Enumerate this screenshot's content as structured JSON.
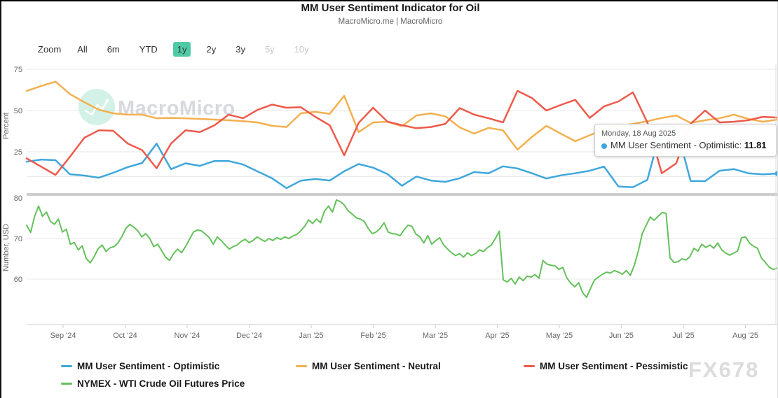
{
  "header": {
    "title": "MM User Sentiment Indicator for Oil",
    "subtitle": "MacroMicro.me | MacroMicro"
  },
  "range_selector": {
    "zoom_label": "Zoom",
    "buttons": [
      {
        "label": "All",
        "state": "normal"
      },
      {
        "label": "6m",
        "state": "normal"
      },
      {
        "label": "YTD",
        "state": "normal"
      },
      {
        "label": "1y",
        "state": "active"
      },
      {
        "label": "2y",
        "state": "normal"
      },
      {
        "label": "3y",
        "state": "normal"
      },
      {
        "label": "5y",
        "state": "disabled"
      },
      {
        "label": "10y",
        "state": "disabled"
      }
    ]
  },
  "tooltip": {
    "date": "Monday, 18 Aug 2025",
    "series_name": "MM User Sentiment - Optimistic",
    "separator": ": ",
    "value": "11.81",
    "marker_color": "#3FA7DC"
  },
  "watermarks": {
    "brand_text": "MacroMicro",
    "fx_text": "FX678"
  },
  "colors": {
    "optimistic": "#3FA7DC",
    "neutral": "#F4B04F",
    "pessimistic": "#EE5A4B",
    "wti": "#64C15B",
    "active_button_bg": "#50C9A5",
    "gridline": "#E7E7E7",
    "separator_band": "#CDCDCD",
    "axis_text": "#666666",
    "watermark_circle": "#AEE6D2",
    "watermark_text": "#CDD2D6"
  },
  "x_axis": {
    "months": [
      "Sep '24",
      "Oct '24",
      "Nov '24",
      "Dec '24",
      "Jan '25",
      "Feb '25",
      "Mar '25",
      "Apr '25",
      "May '25",
      "Jun '25",
      "Jul '25",
      "Aug '25"
    ]
  },
  "chart_data": [
    {
      "type": "line",
      "panel": "top",
      "ylabel": "Percent",
      "yticks": [
        25,
        50,
        75
      ],
      "gridlines": [
        10,
        25,
        50,
        75
      ],
      "ylim": [
        0,
        78
      ],
      "legend_position": "bottom",
      "series": [
        {
          "name": "MM User Sentiment - Optimistic",
          "color_key": "optimistic",
          "values": [
            19,
            20.3,
            19.9,
            11.4,
            10.6,
            9.3,
            12.3,
            15.7,
            18.2,
            30,
            14.5,
            18,
            16.5,
            19.4,
            19.4,
            17.3,
            13.1,
            9,
            3,
            7.5,
            8.5,
            7.6,
            13.2,
            17.6,
            15.4,
            11.5,
            4.4,
            10,
            7.6,
            6.8,
            9,
            12.7,
            12,
            16.2,
            14.9,
            12,
            8.8,
            10.7,
            12,
            13.5,
            16,
            4,
            3.5,
            8,
            40.5,
            40,
            7.3,
            7.2,
            13.5,
            14.5,
            12,
            11.3,
            11.81
          ]
        },
        {
          "name": "MM User Sentiment - Neutral",
          "color_key": "neutral",
          "values": [
            61.9,
            64.8,
            67.5,
            60,
            55,
            50.5,
            48.3,
            47.5,
            47.5,
            45.3,
            45.5,
            45.3,
            44.9,
            44.5,
            44.1,
            43.5,
            42.8,
            40.7,
            40,
            48.3,
            49.2,
            48,
            58.9,
            36.9,
            42.8,
            43.2,
            40.5,
            47,
            48.3,
            46.5,
            39.8,
            36,
            39.5,
            38,
            26.3,
            34,
            40.7,
            36,
            31.4,
            35,
            38.5,
            40.7,
            41.9,
            43.5,
            45.5,
            47,
            42.5,
            44.1,
            45.3,
            47.5,
            44.9,
            43.2,
            44.5
          ]
        },
        {
          "name": "MM User Sentiment - Pessimistic",
          "color_key": "pessimistic",
          "values": [
            21,
            16,
            11,
            22,
            33.5,
            38,
            37.7,
            30,
            26,
            15,
            30,
            38,
            37,
            41,
            47.5,
            45.3,
            50.4,
            53.6,
            51.7,
            52,
            46.2,
            41,
            22.9,
            42.5,
            51.7,
            43.2,
            41.1,
            39.3,
            40,
            41.9,
            51.5,
            47.5,
            45.3,
            42.8,
            61.9,
            57.6,
            50,
            53.4,
            56.5,
            45.5,
            52.5,
            55.5,
            61,
            42.8,
            12,
            18,
            41.9,
            50,
            42.8,
            43.2,
            44.1,
            46.2,
            45.7
          ]
        }
      ]
    },
    {
      "type": "line",
      "panel": "bottom",
      "ylabel": "Number, USD",
      "yticks": [
        60,
        70,
        80
      ],
      "gridlines": [
        60,
        70
      ],
      "ylim": [
        48.5,
        80.5
      ],
      "series": [
        {
          "name": "NYMEX - WTI Crude Oil Futures Price",
          "color_key": "wti",
          "values": [
            73.3,
            71.5,
            75.4,
            78,
            75.5,
            76.5,
            74.2,
            73.5,
            74.8,
            71.6,
            72.3,
            68.6,
            69,
            67.2,
            68.2,
            65.1,
            64,
            65.5,
            67.5,
            68.4,
            66.8,
            67.7,
            68,
            68.9,
            70.5,
            72.5,
            73.5,
            72.8,
            71.9,
            70.4,
            71.2,
            70,
            68,
            68.6,
            67,
            65.4,
            64.6,
            66.3,
            67.4,
            66.5,
            68,
            69.8,
            71.6,
            72.1,
            71.9,
            71.1,
            70.2,
            68.6,
            70.4,
            69.5,
            68.4,
            67.4,
            68,
            68.4,
            69.3,
            69.8,
            69,
            69.5,
            70.4,
            69.8,
            69.3,
            70,
            69.5,
            70.2,
            69.8,
            70.4,
            70,
            70.6,
            71,
            71.9,
            73,
            74.6,
            73.7,
            74.8,
            73.9,
            76.8,
            78,
            76.5,
            79.5,
            79.1,
            78.2,
            76.8,
            76,
            75.1,
            74.8,
            74.2,
            72.5,
            71.2,
            71.6,
            72.5,
            73.9,
            71.6,
            71.2,
            71.1,
            70.7,
            72.1,
            73.3,
            73,
            71.1,
            70.4,
            68.9,
            70.7,
            68.6,
            69.5,
            70.2,
            68.4,
            67.4,
            66.5,
            65.8,
            66.3,
            65.4,
            66.5,
            65.8,
            66.3,
            67.2,
            66.8,
            67.7,
            68.4,
            70,
            71.8,
            59.8,
            59.3,
            60.2,
            58.8,
            60.5,
            59.6,
            60.7,
            60.5,
            61.1,
            60.2,
            64.6,
            63.7,
            63.4,
            63.3,
            62.4,
            62.9,
            60.3,
            59,
            58.1,
            59.1,
            56.6,
            55.5,
            57.8,
            59.8,
            60.5,
            61.2,
            61.7,
            61.5,
            62.1,
            61.7,
            61.2,
            62.1,
            60.9,
            63.4,
            66.9,
            71.2,
            73.3,
            75.3,
            74.5,
            75.5,
            76.4,
            76.2,
            65.2,
            64.1,
            64.3,
            65,
            64.7,
            65.5,
            67.6,
            66.9,
            68.6,
            67.8,
            68.4,
            67.6,
            68.9,
            67.2,
            66.4,
            65.9,
            66.4,
            66.9,
            70.2,
            70.4,
            68.9,
            68.1,
            67.6,
            65.2,
            64.1,
            62.9,
            62.4,
            62.7
          ]
        }
      ]
    }
  ]
}
